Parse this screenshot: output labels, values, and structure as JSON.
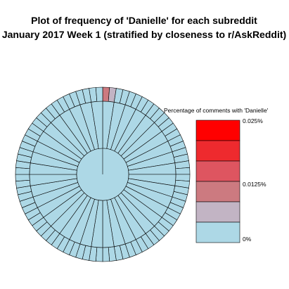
{
  "chart_data": {
    "type": "pie",
    "title_line1": "Plot of frequency of 'Danielle' for each subreddit",
    "title_line2": "January 2017 Week 1 (stratified by closeness to r/AskReddit)",
    "rings": {
      "inner_segments": 1,
      "middle_segments": 40,
      "outer_segments": 80
    },
    "highlighted_segments": [
      {
        "ring": "outer",
        "index": 0,
        "color": "#CC7A80"
      },
      {
        "ring": "outer",
        "index": 1,
        "color": "#C2B4C4"
      }
    ],
    "base_color": "#ADD8E6",
    "legend": {
      "title": "Percentage of comments with 'Danielle'",
      "colors": [
        "#FF0000",
        "#EE2A2E",
        "#DE5560",
        "#CC7A80",
        "#C2B4C4",
        "#ADD8E6"
      ],
      "labels": [
        "0.025%",
        "0.0125%",
        "0%"
      ]
    }
  }
}
